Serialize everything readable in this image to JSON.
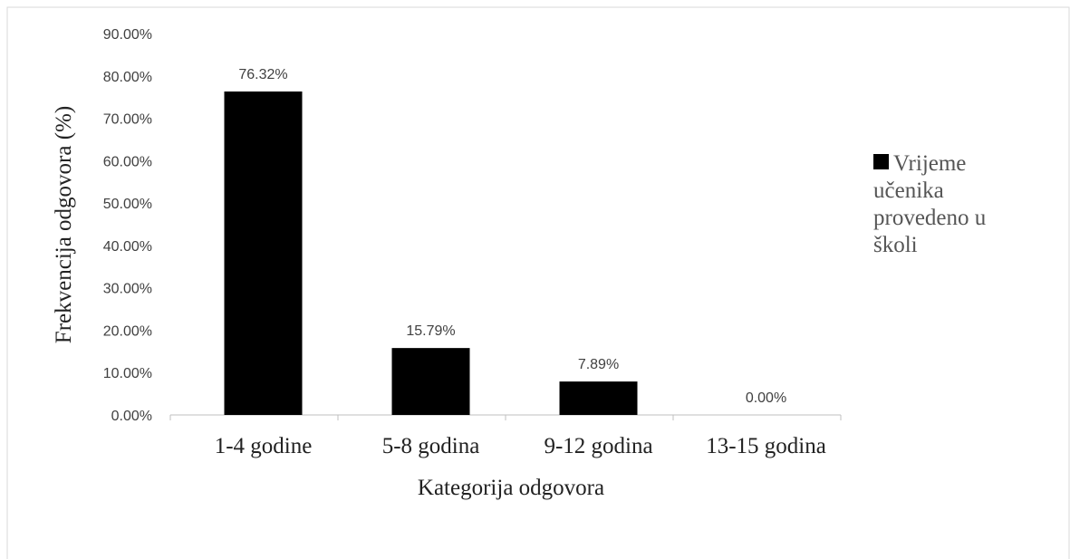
{
  "chart_data": {
    "type": "bar",
    "x_label": "Kategorija odgovora",
    "y_label": "Frekvencija odgovora (%)",
    "categories": [
      "1-4 godine",
      "5-8 godina",
      "9-12 godina",
      "13-15 godina"
    ],
    "series": [
      {
        "name": "Vrijeme učenika provedeno u školi",
        "color": "#000000",
        "values": [
          76.32,
          15.79,
          7.89,
          0
        ],
        "value_labels": [
          "76.32%",
          "15.79%",
          "7.89%",
          "0.00%"
        ]
      }
    ],
    "ylim": [
      0,
      90
    ],
    "yticks": [
      {
        "value": 0,
        "label": "0.00%"
      },
      {
        "value": 10,
        "label": "10.00%"
      },
      {
        "value": 20,
        "label": "20.00%"
      },
      {
        "value": 30,
        "label": "30.00%"
      },
      {
        "value": 40,
        "label": "40.00%"
      },
      {
        "value": 50,
        "label": "50.00%"
      },
      {
        "value": 60,
        "label": "60.00%"
      },
      {
        "value": 70,
        "label": "70.00%"
      },
      {
        "value": 80,
        "label": "80.00%"
      },
      {
        "value": 90,
        "label": "90.00%"
      }
    ],
    "grid": false,
    "legend": "right"
  }
}
